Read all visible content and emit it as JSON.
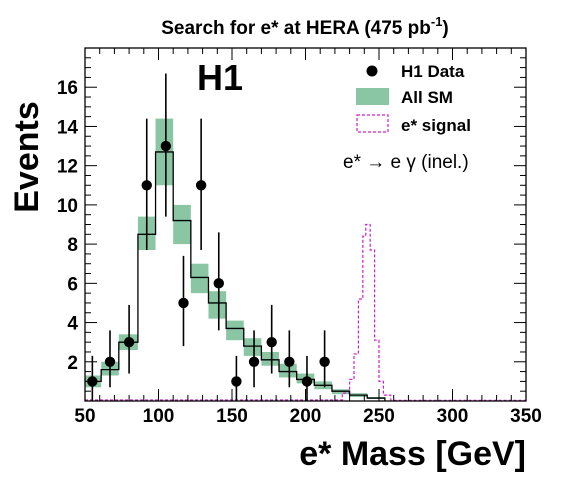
{
  "chart_data": {
    "type": "histogram",
    "title": "Search for e* at HERA (475 pb",
    "title_sup": "-1",
    "title_close": ")",
    "xlabel": "e* Mass [GeV]",
    "ylabel": "Events",
    "xlim": [
      50,
      350
    ],
    "ylim": [
      0,
      18
    ],
    "xticks": [
      "50",
      "100",
      "150",
      "200",
      "250",
      "300",
      "350"
    ],
    "yticks": [
      "2",
      "4",
      "6",
      "8",
      "10",
      "12",
      "14",
      "16"
    ],
    "experiment_label": "H1",
    "annotation": "e* → e γ (inel.)",
    "legend": {
      "position": "top-right",
      "entries": [
        {
          "label": "H1 Data"
        },
        {
          "label": "All SM"
        },
        {
          "label": "e* signal"
        }
      ]
    },
    "colors": {
      "sm_band": "#8ac6a4",
      "signal": "#d020c8",
      "data": "#000000"
    },
    "data_points": [
      {
        "x": 55,
        "y": 1,
        "err_up": 1.3,
        "err_down": 1
      },
      {
        "x": 67,
        "y": 2,
        "err_up": 1.6,
        "err_down": 1.3
      },
      {
        "x": 80,
        "y": 3,
        "err_up": 1.9,
        "err_down": 1.6
      },
      {
        "x": 92,
        "y": 11,
        "err_up": 3.4,
        "err_down": 3.3
      },
      {
        "x": 105,
        "y": 13,
        "err_up": 3.7,
        "err_down": 3.6
      },
      {
        "x": 117,
        "y": 5,
        "err_up": 2.4,
        "err_down": 2.2
      },
      {
        "x": 129,
        "y": 11,
        "err_up": 3.4,
        "err_down": 3.3
      },
      {
        "x": 141,
        "y": 6,
        "err_up": 2.6,
        "err_down": 2.4
      },
      {
        "x": 153,
        "y": 1,
        "err_up": 1.3,
        "err_down": 1
      },
      {
        "x": 165,
        "y": 2,
        "err_up": 1.6,
        "err_down": 1.3
      },
      {
        "x": 177,
        "y": 3,
        "err_up": 1.9,
        "err_down": 1.6
      },
      {
        "x": 189,
        "y": 2,
        "err_up": 1.6,
        "err_down": 1.3
      },
      {
        "x": 201,
        "y": 1,
        "err_up": 1.3,
        "err_down": 1
      },
      {
        "x": 213,
        "y": 2,
        "err_up": 1.6,
        "err_down": 1.3
      }
    ],
    "sm_bins": [
      {
        "x0": 49,
        "x1": 61,
        "value": 1.0,
        "band_low": 0.7,
        "band_high": 1.3
      },
      {
        "x0": 61,
        "x1": 73,
        "value": 1.6,
        "band_low": 1.3,
        "band_high": 2.0
      },
      {
        "x0": 73,
        "x1": 86,
        "value": 3.0,
        "band_low": 2.6,
        "band_high": 3.4
      },
      {
        "x0": 86,
        "x1": 98,
        "value": 8.5,
        "band_low": 7.7,
        "band_high": 9.4
      },
      {
        "x0": 98,
        "x1": 110,
        "value": 12.7,
        "band_low": 11.0,
        "band_high": 14.4
      },
      {
        "x0": 110,
        "x1": 122,
        "value": 9.2,
        "band_low": 8.0,
        "band_high": 10.0
      },
      {
        "x0": 122,
        "x1": 134,
        "value": 6.3,
        "band_low": 5.5,
        "band_high": 7.0
      },
      {
        "x0": 134,
        "x1": 146,
        "value": 5.0,
        "band_low": 4.2,
        "band_high": 5.6
      },
      {
        "x0": 146,
        "x1": 158,
        "value": 3.7,
        "band_low": 3.1,
        "band_high": 4.1
      },
      {
        "x0": 158,
        "x1": 170,
        "value": 2.8,
        "band_low": 2.3,
        "band_high": 3.2
      },
      {
        "x0": 170,
        "x1": 182,
        "value": 2.1,
        "band_low": 1.8,
        "band_high": 2.5
      },
      {
        "x0": 182,
        "x1": 194,
        "value": 1.5,
        "band_low": 1.2,
        "band_high": 1.9
      },
      {
        "x0": 194,
        "x1": 206,
        "value": 1.1,
        "band_low": 0.9,
        "band_high": 1.4
      },
      {
        "x0": 206,
        "x1": 218,
        "value": 0.8,
        "band_low": 0.6,
        "band_high": 1.0
      },
      {
        "x0": 218,
        "x1": 230,
        "value": 0.5,
        "band_low": 0.35,
        "band_high": 0.6
      },
      {
        "x0": 230,
        "x1": 242,
        "value": 0.3,
        "band_low": 0.2,
        "band_high": 0.4
      },
      {
        "x0": 242,
        "x1": 254,
        "value": 0.15,
        "band_low": 0.1,
        "band_high": 0.2
      }
    ],
    "signal_bins": [
      {
        "x0": 49,
        "x1": 225,
        "value": 0.05
      },
      {
        "x0": 225,
        "x1": 230,
        "value": 0.4
      },
      {
        "x0": 230,
        "x1": 233,
        "value": 1.1
      },
      {
        "x0": 233,
        "x1": 236,
        "value": 2.4
      },
      {
        "x0": 236,
        "x1": 239,
        "value": 5.2
      },
      {
        "x0": 239,
        "x1": 241,
        "value": 8.4
      },
      {
        "x0": 241,
        "x1": 244,
        "value": 9.0
      },
      {
        "x0": 244,
        "x1": 247,
        "value": 7.7
      },
      {
        "x0": 247,
        "x1": 250,
        "value": 3.1
      },
      {
        "x0": 250,
        "x1": 253,
        "value": 1.0
      },
      {
        "x0": 253,
        "x1": 258,
        "value": 0.3
      },
      {
        "x0": 258,
        "x1": 350,
        "value": 0.03
      }
    ]
  }
}
